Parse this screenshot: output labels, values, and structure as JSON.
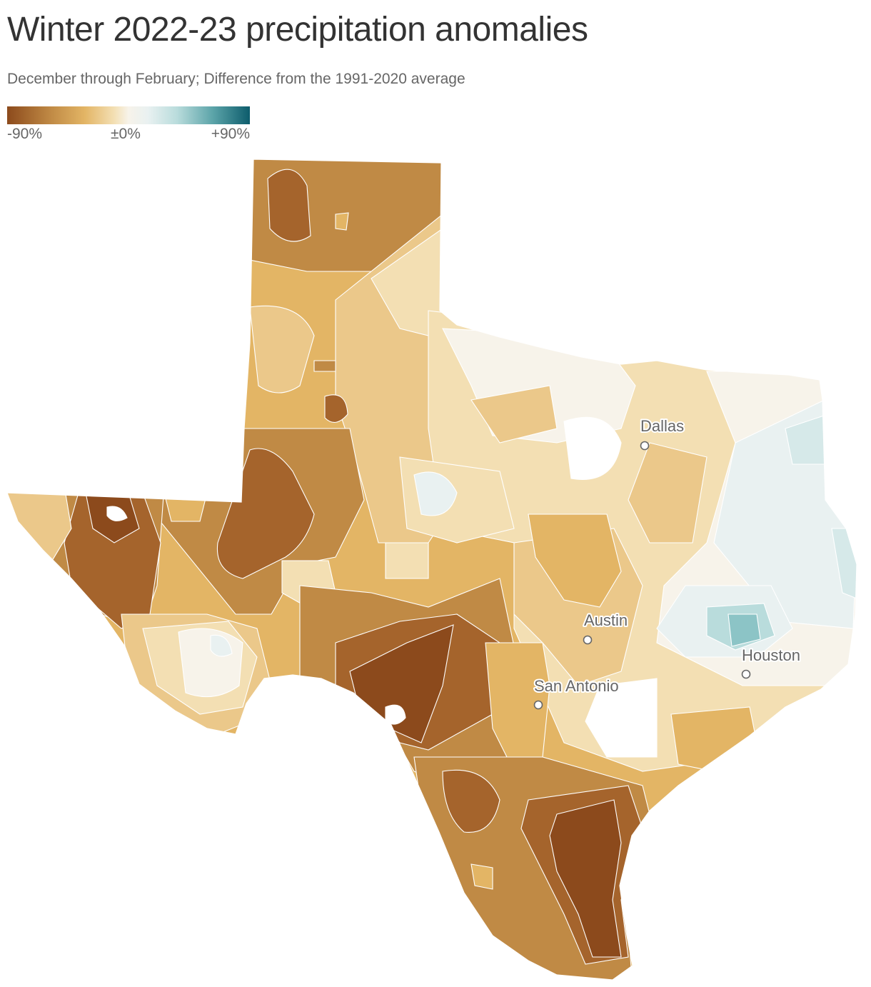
{
  "title": "Winter 2022-23 precipitation anomalies",
  "subtitle": "December through February; Difference from the 1991-2020 average",
  "legend": {
    "min_label": "-90%",
    "mid_label": "±0%",
    "max_label": "+90%",
    "color_scale": [
      "#8c4a1c",
      "#c08a45",
      "#e3b565",
      "#f3dfb3",
      "#f7f3ea",
      "#e9f1f1",
      "#b9dcdc",
      "#5aa3a8",
      "#0d5c6c"
    ]
  },
  "map": {
    "region": "Texas",
    "cities": [
      {
        "name": "Dallas"
      },
      {
        "name": "Austin"
      },
      {
        "name": "San Antonio"
      },
      {
        "name": "Houston"
      }
    ]
  }
}
